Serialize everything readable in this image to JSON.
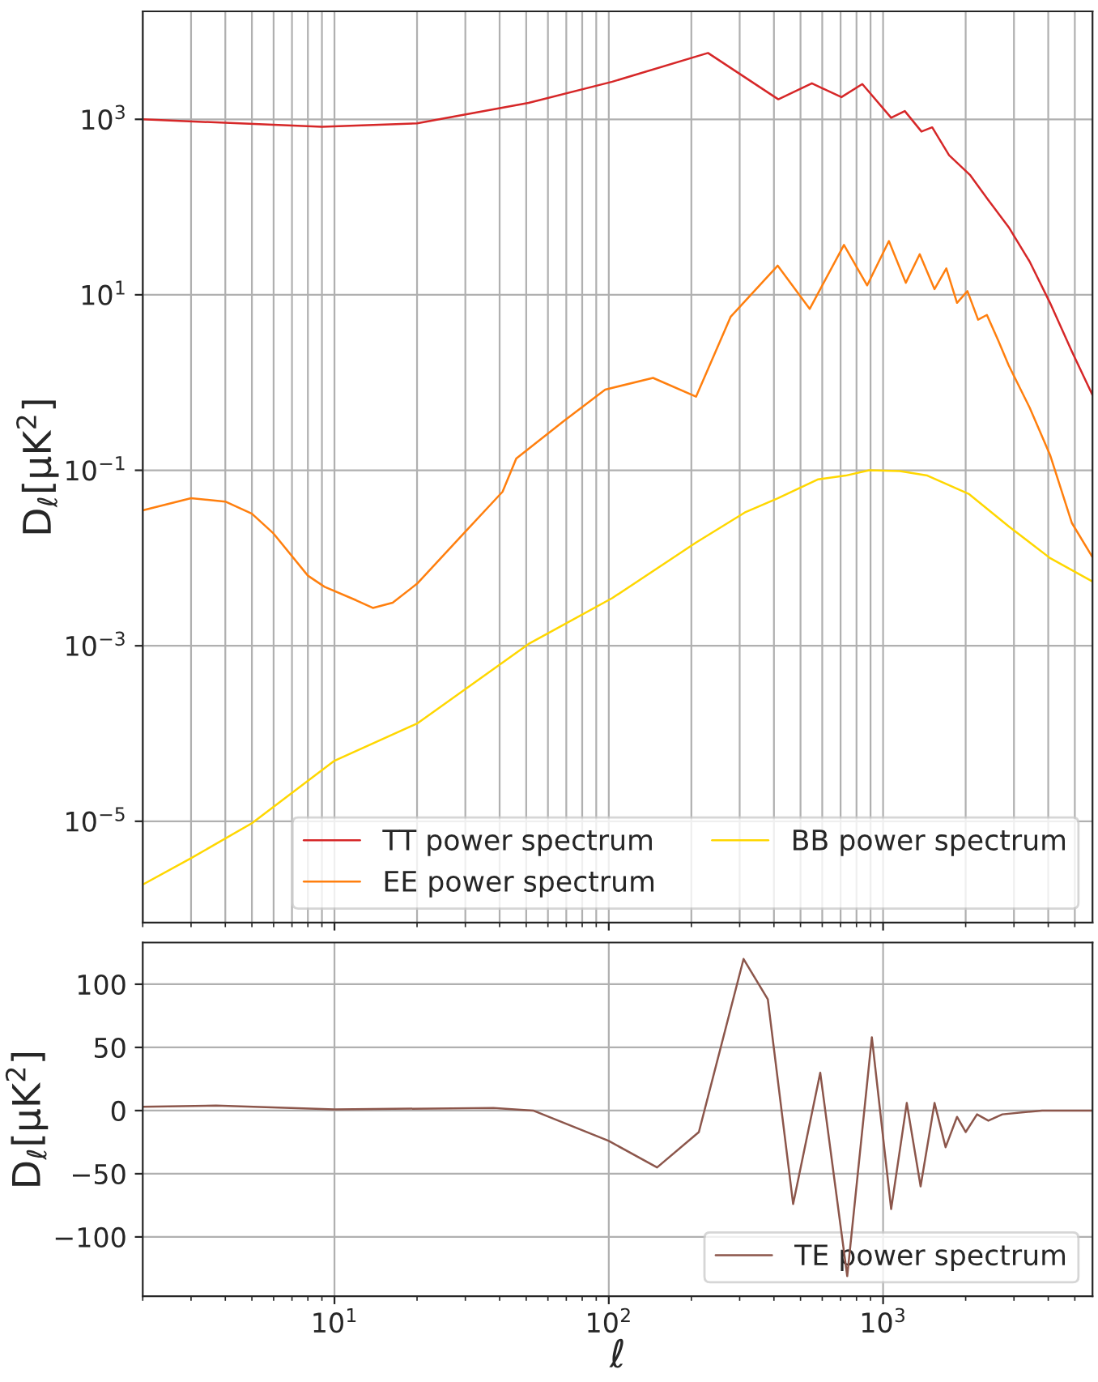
{
  "chart_data": [
    {
      "type": "line",
      "ylabel": "D$_{ℓ}$[μK$^{2}$]",
      "log": "xy",
      "grid": true,
      "legend": "bottom right",
      "tick_labels": "y",
      "xlim": [
        2,
        5800
      ],
      "ylim": [
        7e-07,
        17000
      ],
      "xticks": [
        {
          "value": 10,
          "label": null
        },
        {
          "value": 100,
          "label": null
        },
        {
          "value": 1000,
          "label": null
        }
      ],
      "yticks": [
        {
          "value": 1e-05,
          "label": "10$^{−5}$"
        },
        {
          "value": 0.001,
          "label": "10$^{−3}$"
        },
        {
          "value": 0.1,
          "label": "10$^{−1}$"
        },
        {
          "value": 10,
          "label": "10$^{1}$"
        },
        {
          "value": 1000,
          "label": "10$^{3}$"
        }
      ],
      "series": [
        {
          "name": "TT power spectrum",
          "color": "#d62728",
          "x": [
            2,
            9,
            20,
            51,
            103,
            230,
            415,
            550,
            705,
            840,
            1070,
            1200,
            1380,
            1510,
            1740,
            2080,
            2410,
            2870,
            3420,
            4060,
            4880,
            5800
          ],
          "values": [
            1000,
            820,
            900,
            1540,
            2680,
            5700,
            1690,
            2570,
            1790,
            2520,
            1040,
            1240,
            725,
            810,
            390,
            230,
            122,
            59,
            24,
            8.1,
            2.25,
            0.72
          ]
        },
        {
          "name": "EE power spectrum",
          "color": "#ff7f0e",
          "x": [
            2,
            3,
            4,
            5,
            6,
            8,
            9.2,
            12,
            13.8,
            16.3,
            20,
            28.6,
            41,
            46,
            69,
            97,
            145,
            208,
            278,
            413,
            540,
            720,
            875,
            1050,
            1210,
            1360,
            1540,
            1700,
            1860,
            2030,
            2220,
            2390,
            2630,
            2870,
            3420,
            4060,
            4880,
            5800
          ],
          "values": [
            0.035,
            0.048,
            0.044,
            0.032,
            0.019,
            0.0063,
            0.0047,
            0.0033,
            0.0027,
            0.0031,
            0.0051,
            0.017,
            0.057,
            0.136,
            0.37,
            0.83,
            1.13,
            0.69,
            5.6,
            21.5,
            6.9,
            37,
            12.8,
            41,
            13.7,
            29,
            11.6,
            20,
            8.1,
            11,
            5.2,
            5.9,
            3.0,
            1.57,
            0.52,
            0.15,
            0.025,
            0.0102
          ]
        },
        {
          "name": "BB power spectrum",
          "color": "#ffd700",
          "x": [
            2,
            3,
            5,
            10,
            20,
            51,
            103,
            208,
            313,
            413,
            580,
            730,
            890,
            1150,
            1450,
            2050,
            2870,
            4060,
            5800
          ],
          "values": [
            1.9e-06,
            3.8e-06,
            9.5e-06,
            4.9e-05,
            0.00013,
            0.00105,
            0.0035,
            0.015,
            0.033,
            0.048,
            0.079,
            0.087,
            0.1,
            0.098,
            0.087,
            0.054,
            0.023,
            0.01,
            0.0054
          ]
        }
      ]
    },
    {
      "type": "line",
      "xlabel": "ℓ",
      "ylabel": "D$_{ℓ}$[μK$^{2}$]",
      "log": "x",
      "grid": true,
      "legend": "bottom right",
      "xlim": [
        2,
        5800
      ],
      "ylim": [
        -147,
        133
      ],
      "xticks": [
        {
          "value": 10,
          "label": "10$^{1}$"
        },
        {
          "value": 100,
          "label": "10$^{2}$"
        },
        {
          "value": 1000,
          "label": "10$^{3}$"
        }
      ],
      "yticks": [
        {
          "value": -100,
          "label": "−100"
        },
        {
          "value": -50,
          "label": "−50"
        },
        0,
        50,
        100
      ],
      "series": [
        {
          "name": "TE power spectrum",
          "color": "#8c564b",
          "x": [
            2,
            3.7,
            10,
            38,
            53,
            100,
            150,
            213,
            310,
            380,
            470,
            590,
            740,
            910,
            1070,
            1220,
            1370,
            1540,
            1690,
            1860,
            2000,
            2200,
            2420,
            2720,
            3800,
            5800
          ],
          "values": [
            3,
            4,
            1,
            2,
            0,
            -24,
            -45,
            -17,
            120,
            88,
            -74,
            30,
            -131,
            58,
            -78,
            6,
            -60,
            6,
            -29,
            -5,
            -17,
            -3,
            -8,
            -3,
            0,
            0
          ]
        }
      ]
    }
  ]
}
